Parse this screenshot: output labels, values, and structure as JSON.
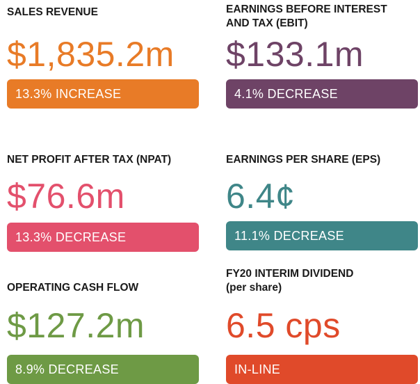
{
  "tiles": [
    {
      "label_lines": [
        "SALES REVENUE"
      ],
      "value": "$1,835.2m",
      "change": "13.3% INCREASE",
      "color": "#e87b27"
    },
    {
      "label_lines": [
        "EARNINGS BEFORE INTEREST",
        "AND TAX (EBIT)"
      ],
      "value": "$133.1m",
      "change": "4.1% DECREASE",
      "color": "#6e4366"
    },
    {
      "label_lines": [
        "NET PROFIT AFTER TAX (NPAT)"
      ],
      "value": "$76.6m",
      "change": "13.3% DECREASE",
      "color": "#e3506c"
    },
    {
      "label_lines": [
        "EARNINGS PER SHARE (EPS)"
      ],
      "value": "6.4¢",
      "change": "11.1% DECREASE",
      "color": "#3f8688"
    },
    {
      "label_lines": [
        "OPERATING CASH FLOW"
      ],
      "value": "$127.2m",
      "change": "8.9% DECREASE",
      "color": "#6e9a45"
    },
    {
      "label_lines": [
        "FY20 INTERIM DIVIDEND",
        "(per share)"
      ],
      "value": "6.5 cps",
      "change": "IN-LINE",
      "color": "#e04a2a"
    }
  ]
}
